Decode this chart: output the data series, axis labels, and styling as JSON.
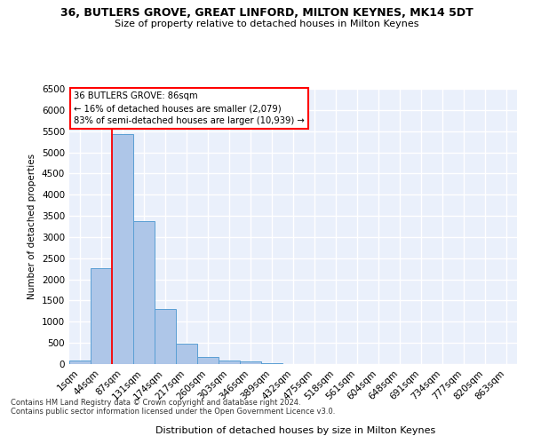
{
  "title": "36, BUTLERS GROVE, GREAT LINFORD, MILTON KEYNES, MK14 5DT",
  "subtitle": "Size of property relative to detached houses in Milton Keynes",
  "xlabel": "Distribution of detached houses by size in Milton Keynes",
  "ylabel": "Number of detached properties",
  "categories": [
    "1sqm",
    "44sqm",
    "87sqm",
    "131sqm",
    "174sqm",
    "217sqm",
    "260sqm",
    "303sqm",
    "346sqm",
    "389sqm",
    "432sqm",
    "475sqm",
    "518sqm",
    "561sqm",
    "604sqm",
    "648sqm",
    "691sqm",
    "734sqm",
    "777sqm",
    "820sqm",
    "863sqm"
  ],
  "values": [
    75,
    2270,
    5430,
    3380,
    1300,
    480,
    165,
    90,
    55,
    30,
    0,
    0,
    0,
    0,
    0,
    0,
    0,
    0,
    0,
    0,
    0
  ],
  "bar_color": "#aec6e8",
  "bar_edge_color": "#5a9fd4",
  "annotation_line1": "36 BUTLERS GROVE: 86sqm",
  "annotation_line2": "← 16% of detached houses are smaller (2,079)",
  "annotation_line3": "83% of semi-detached houses are larger (10,939) →",
  "annotation_box_color": "white",
  "annotation_box_edge_color": "red",
  "vline_color": "red",
  "background_color": "#eaf0fb",
  "grid_color": "white",
  "ylim": [
    0,
    6500
  ],
  "yticks": [
    0,
    500,
    1000,
    1500,
    2000,
    2500,
    3000,
    3500,
    4000,
    4500,
    5000,
    5500,
    6000,
    6500
  ],
  "footer1": "Contains HM Land Registry data © Crown copyright and database right 2024.",
  "footer2": "Contains public sector information licensed under the Open Government Licence v3.0."
}
